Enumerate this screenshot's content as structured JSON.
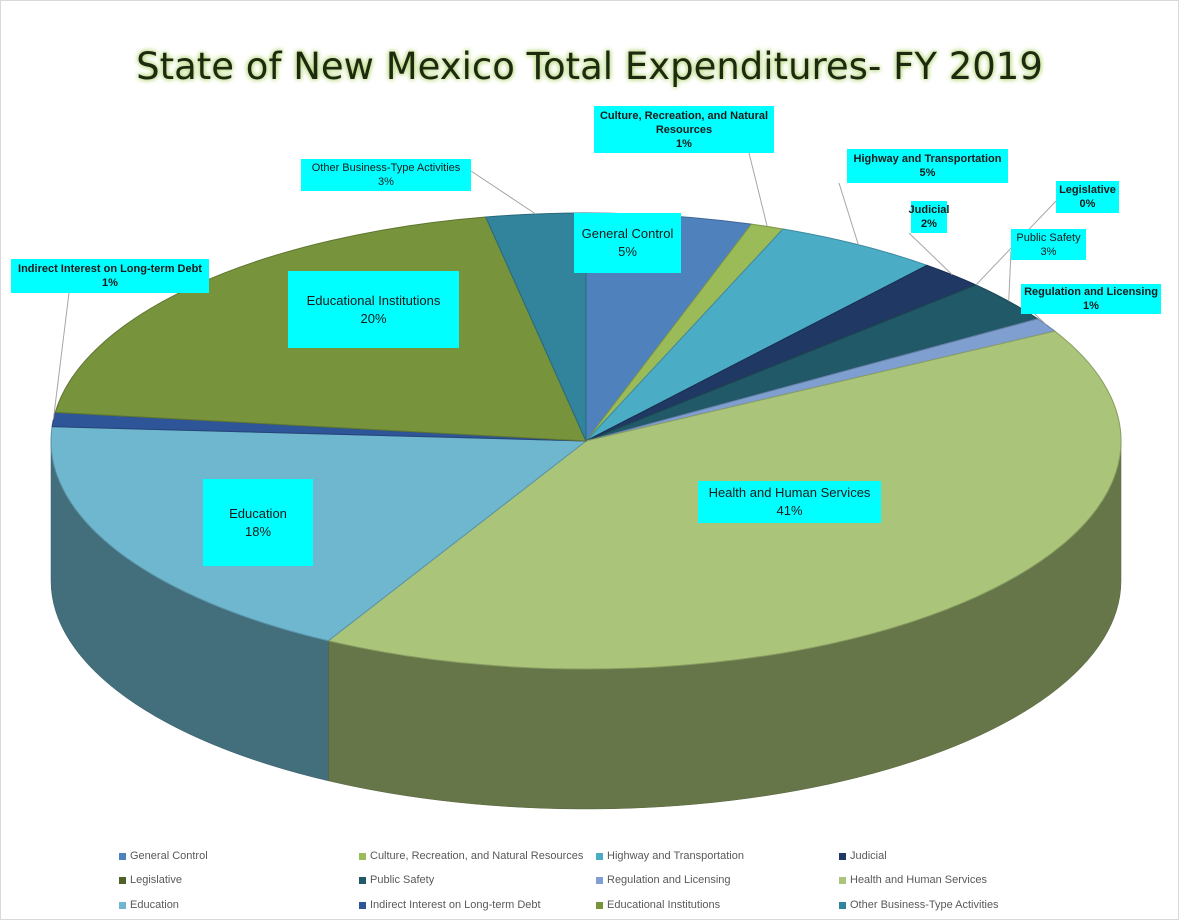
{
  "chart_data": {
    "type": "pie3d",
    "title": "State of New Mexico Total Expenditures- FY 2019",
    "categories": [
      "General Control",
      "Culture, Recreation, and Natural Resources",
      "Highway and Transportation",
      "Judicial",
      "Legislative",
      "Public Safety",
      "Regulation and Licensing",
      "Health and Human Services",
      "Education",
      "Indirect Interest on Long-term Debt",
      "Educational Institutions",
      "Other Business-Type Activities"
    ],
    "values": [
      5,
      1,
      5,
      2,
      0,
      3,
      1,
      41,
      18,
      1,
      20,
      3
    ],
    "value_labels": [
      "5%",
      "1%",
      "5%",
      "2%",
      "0%",
      "3%",
      "1%",
      "41%",
      "18%",
      "1%",
      "20%",
      "3%"
    ],
    "colors": [
      "#4f81bd",
      "#9bbb59",
      "#4bacc6",
      "#1f3864",
      "#4f6228",
      "#215968",
      "#7f9fd0",
      "#aac47a",
      "#6fb7cf",
      "#2e5597",
      "#77933c",
      "#31849b"
    ],
    "legend": "bottom"
  }
}
